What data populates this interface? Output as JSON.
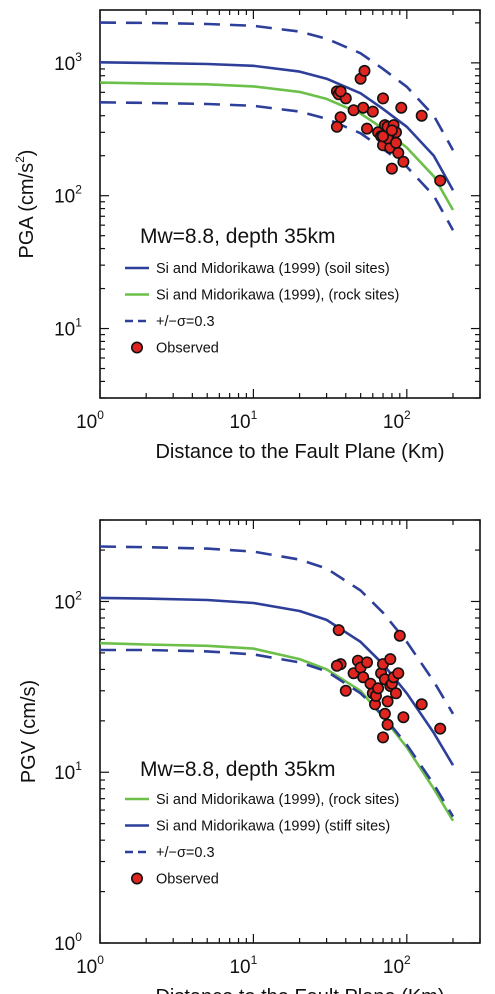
{
  "colors": {
    "soil": "#2e3f9a",
    "rock": "#6cc04a",
    "sigma": "#2e3f9a",
    "marker_fill": "#e02520",
    "marker_edge": "#111111"
  },
  "chart_data": [
    {
      "type": "line",
      "id": "pga",
      "xscale": "log",
      "yscale": "log",
      "xlim": [
        1,
        300
      ],
      "ylim": [
        3,
        2500
      ],
      "ylabel_main": "PGA (cm/s",
      "ylabel_sup": "2",
      "ylabel_tail": ")",
      "xlabel": "Distance to the Fault Plane (Km)",
      "x_ticks": [
        {
          "base": "10",
          "exp": "0"
        },
        {
          "base": "10",
          "exp": "1"
        },
        {
          "base": "10",
          "exp": "2"
        }
      ],
      "y_ticks": [
        {
          "base": "10",
          "exp": "1"
        },
        {
          "base": "10",
          "exp": "2"
        },
        {
          "base": "10",
          "exp": "3"
        }
      ],
      "annotation": "Mw=8.8, depth 35km",
      "series": [
        {
          "name": "Si and Midorikawa (1999) (soil sites)",
          "color_key": "soil",
          "dash": false,
          "x": [
            1,
            2,
            5,
            10,
            20,
            30,
            50,
            70,
            100,
            150,
            200
          ],
          "y": [
            1010,
            1000,
            980,
            950,
            860,
            760,
            590,
            450,
            330,
            200,
            110
          ]
        },
        {
          "name": "Si and Midorikawa (1999), (rock sites)",
          "color_key": "rock",
          "dash": false,
          "x": [
            1,
            2,
            5,
            10,
            20,
            30,
            50,
            70,
            100,
            150,
            200
          ],
          "y": [
            710,
            700,
            690,
            665,
            605,
            535,
            415,
            320,
            230,
            140,
            78
          ]
        },
        {
          "name": "+/−σ=0.3",
          "color_key": "sigma",
          "dash": true,
          "x": [
            1,
            2,
            5,
            10,
            20,
            30,
            50,
            70,
            100,
            150,
            200
          ],
          "y": [
            2010,
            2000,
            1960,
            1900,
            1720,
            1520,
            1180,
            900,
            660,
            400,
            220
          ]
        },
        {
          "name": "",
          "color_key": "sigma",
          "dash": true,
          "x": [
            1,
            2,
            5,
            10,
            20,
            30,
            50,
            70,
            100,
            150,
            200
          ],
          "y": [
            505,
            500,
            490,
            475,
            430,
            380,
            295,
            225,
            165,
            100,
            55
          ]
        }
      ],
      "observed_label": "Observed",
      "observed": {
        "x": [
          35,
          36,
          37,
          40,
          35,
          37,
          45,
          50,
          53,
          52,
          55,
          60,
          65,
          68,
          70,
          72,
          70,
          75,
          78,
          80,
          82,
          85,
          88,
          92,
          75,
          80,
          70,
          85,
          95,
          125,
          165
        ],
        "y": [
          610,
          580,
          390,
          540,
          330,
          610,
          440,
          760,
          870,
          460,
          320,
          430,
          300,
          280,
          540,
          340,
          240,
          330,
          230,
          160,
          340,
          300,
          210,
          460,
          270,
          310,
          280,
          250,
          180,
          400,
          130
        ]
      }
    },
    {
      "type": "line",
      "id": "pgv",
      "xscale": "log",
      "yscale": "log",
      "xlim": [
        1,
        300
      ],
      "ylim": [
        1,
        300
      ],
      "ylabel": "PGV (cm/s)",
      "xlabel": "Distance to the Fault Plane (Km)",
      "x_ticks": [
        {
          "base": "10",
          "exp": "0"
        },
        {
          "base": "10",
          "exp": "1"
        },
        {
          "base": "10",
          "exp": "2"
        }
      ],
      "y_ticks": [
        {
          "base": "10",
          "exp": "0"
        },
        {
          "base": "10",
          "exp": "1"
        },
        {
          "base": "10",
          "exp": "2"
        }
      ],
      "annotation": "Mw=8.8, depth 35km",
      "series": [
        {
          "name": "Si and Midorikawa (1999), (rock sites)",
          "color_key": "rock",
          "dash": false,
          "x": [
            1,
            2,
            5,
            10,
            20,
            30,
            50,
            70,
            100,
            150,
            200
          ],
          "y": [
            57,
            56,
            55,
            53,
            46,
            40,
            30,
            21,
            14,
            8,
            5.2
          ]
        },
        {
          "name": "Si and Midorikawa (1999) (stiff sites)",
          "color_key": "soil",
          "dash": false,
          "x": [
            1,
            2,
            5,
            10,
            20,
            30,
            50,
            70,
            100,
            150,
            200
          ],
          "y": [
            105,
            104,
            102,
            98,
            88,
            78,
            58,
            43,
            29,
            17,
            11
          ]
        },
        {
          "name": "+/−σ=0.3",
          "color_key": "sigma",
          "dash": true,
          "x": [
            1,
            2,
            5,
            10,
            20,
            30,
            50,
            70,
            100,
            150,
            200
          ],
          "y": [
            210,
            208,
            204,
            196,
            176,
            156,
            116,
            86,
            58,
            34,
            22
          ]
        },
        {
          "name": "",
          "color_key": "sigma",
          "dash": true,
          "x": [
            1,
            2,
            5,
            10,
            20,
            30,
            50,
            70,
            100,
            150,
            200
          ],
          "y": [
            52,
            52,
            51,
            49,
            44,
            39,
            29,
            21.5,
            14.5,
            8.5,
            5.5
          ]
        }
      ],
      "observed_label": "Observed",
      "observed": {
        "x": [
          36,
          37,
          35,
          40,
          45,
          48,
          50,
          52,
          55,
          58,
          60,
          62,
          63,
          65,
          68,
          70,
          72,
          75,
          78,
          78,
          80,
          82,
          85,
          88,
          70,
          72,
          75,
          90,
          95,
          125,
          165
        ],
        "y": [
          68,
          43,
          42,
          30,
          38,
          45,
          41,
          36,
          44,
          33,
          29,
          25,
          28,
          31,
          38,
          43,
          35,
          26,
          32,
          46,
          33,
          36,
          29,
          38,
          16,
          22,
          19,
          63,
          21,
          25,
          18
        ]
      }
    }
  ]
}
